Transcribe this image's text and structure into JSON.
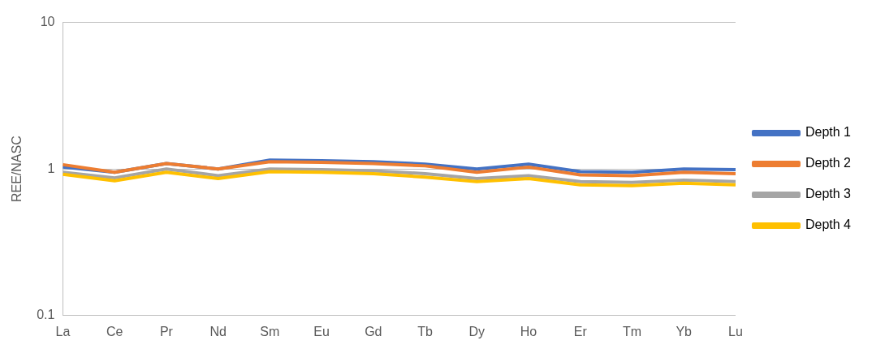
{
  "chart_data": {
    "type": "line",
    "ylabel": "REE/NASC",
    "log": "y",
    "grid": "y",
    "legend": "right",
    "marker": "none",
    "line_style": "solid",
    "categories": [
      "La",
      "Ce",
      "Pr",
      "Nd",
      "Sm",
      "Eu",
      "Gd",
      "Tb",
      "Dy",
      "Ho",
      "Er",
      "Tm",
      "Yb",
      "Lu"
    ],
    "ylim": [
      0.1,
      10
    ],
    "yticks": [
      0.1,
      1,
      10
    ],
    "series": [
      {
        "name": "Depth 1",
        "color": "#4472c4",
        "values": [
          1.03,
          0.95,
          1.09,
          1.0,
          1.15,
          1.14,
          1.12,
          1.08,
          1.0,
          1.08,
          0.96,
          0.95,
          1.0,
          0.99
        ]
      },
      {
        "name": "Depth 2",
        "color": "#ed7d31",
        "values": [
          1.07,
          0.95,
          1.09,
          1.0,
          1.12,
          1.11,
          1.09,
          1.05,
          0.95,
          1.03,
          0.91,
          0.9,
          0.95,
          0.93
        ]
      },
      {
        "name": "Depth 3",
        "color": "#a5a5a5",
        "values": [
          0.95,
          0.87,
          1.0,
          0.9,
          1.0,
          0.99,
          0.97,
          0.93,
          0.86,
          0.9,
          0.82,
          0.81,
          0.84,
          0.82
        ]
      },
      {
        "name": "Depth 4",
        "color": "#ffc000",
        "values": [
          0.92,
          0.83,
          0.95,
          0.86,
          0.96,
          0.95,
          0.93,
          0.88,
          0.82,
          0.86,
          0.78,
          0.77,
          0.8,
          0.78
        ]
      }
    ]
  }
}
